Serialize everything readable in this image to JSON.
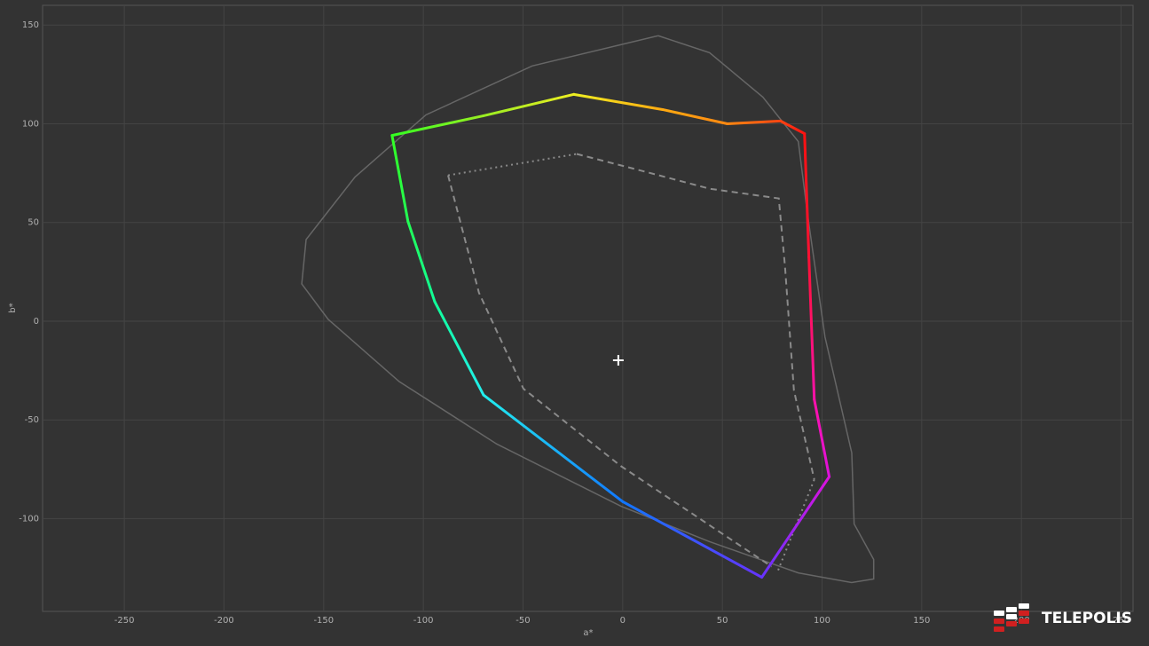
{
  "chart_data": {
    "type": "line",
    "x_label": "a*",
    "y_label": "b*",
    "xlim": [
      -291,
      256
    ],
    "ylim": [
      -147,
      160
    ],
    "xticks": [
      -250,
      -200,
      -150,
      -100,
      -50,
      0,
      50,
      100,
      150,
      200,
      250
    ],
    "yticks": [
      -100,
      -50,
      0,
      50,
      100,
      150
    ],
    "grid": true,
    "series": [
      {
        "style": "solid",
        "color": "#666666",
        "x": [
          17.8,
          43.6,
          70.3,
          88.1,
          92.6,
          101.5,
          114.9,
          116.1,
          125.9,
          125.9,
          114.8,
          88.1,
          43.6,
          -0.9,
          -63.2,
          -112.1,
          -147.7,
          -161.0,
          -158.8,
          -134.3,
          -98.7,
          -45.4,
          17.8
        ],
        "y": [
          144.6,
          136.0,
          113.5,
          91.0,
          55.0,
          -8.1,
          -66.7,
          -102.7,
          -120.7,
          -130.6,
          -132.4,
          -127.5,
          -111.7,
          -93.7,
          -62.2,
          -30.6,
          0.9,
          18.9,
          41.4,
          73.0,
          104.5,
          129.3,
          144.6
        ]
      },
      {
        "style": "dashed",
        "color": "#8a8a8a",
        "x": [
          -23.1,
          8.0,
          43.6,
          78.3,
          81.4,
          85.9,
          96.1
        ],
        "y": [
          84.7,
          76.6,
          67.1,
          62.2,
          27.9,
          -35.1,
          -80.2
        ]
      },
      {
        "style": "dashed",
        "color": "#8a8a8a",
        "x": [
          -87.6,
          -72.1,
          -49.8,
          -0.9,
          74.7
        ],
        "y": [
          73.9,
          14.4,
          -34.2,
          -73.4,
          -124.3
        ]
      },
      {
        "style": "dotted",
        "color": "#8a8a8a",
        "x": [
          -87.6,
          -23.1
        ],
        "y": [
          73.9,
          84.7
        ]
      },
      {
        "style": "dotted",
        "color": "#8a8a8a",
        "x": [
          96.1,
          77.8
        ],
        "y": [
          -80.2,
          -126.6
        ]
      },
      {
        "style": "gradient",
        "colors": [
          "#33ff22",
          "#99ee22",
          "#eeee22",
          "#ffaa11",
          "#ff8811",
          "#ff4411",
          "#ff1111",
          "#ff1133",
          "#ff11aa",
          "#dd11dd",
          "#6633ff",
          "#1177ff",
          "#22eeee",
          "#11ff99",
          "#22ff55",
          "#33ff22"
        ],
        "x": [
          -115.7,
          -70.0,
          -24.5,
          20.0,
          52.5,
          79.2,
          91.2,
          93.4,
          96.1,
          103.6,
          69.8,
          0.0,
          -69.8,
          -94.3,
          -107.7,
          -115.7
        ],
        "y": [
          94.1,
          104.0,
          114.9,
          107.2,
          100.0,
          101.4,
          95.0,
          32.4,
          -39.6,
          -78.8,
          -129.7,
          -91.4,
          -37.4,
          9.9,
          50.5,
          94.1
        ]
      },
      {
        "style": "cross",
        "color": "#ffffff",
        "x": [
          -2.2
        ],
        "y": [
          -19.8
        ]
      }
    ]
  },
  "logo": {
    "text": "TELEPOLIS"
  }
}
